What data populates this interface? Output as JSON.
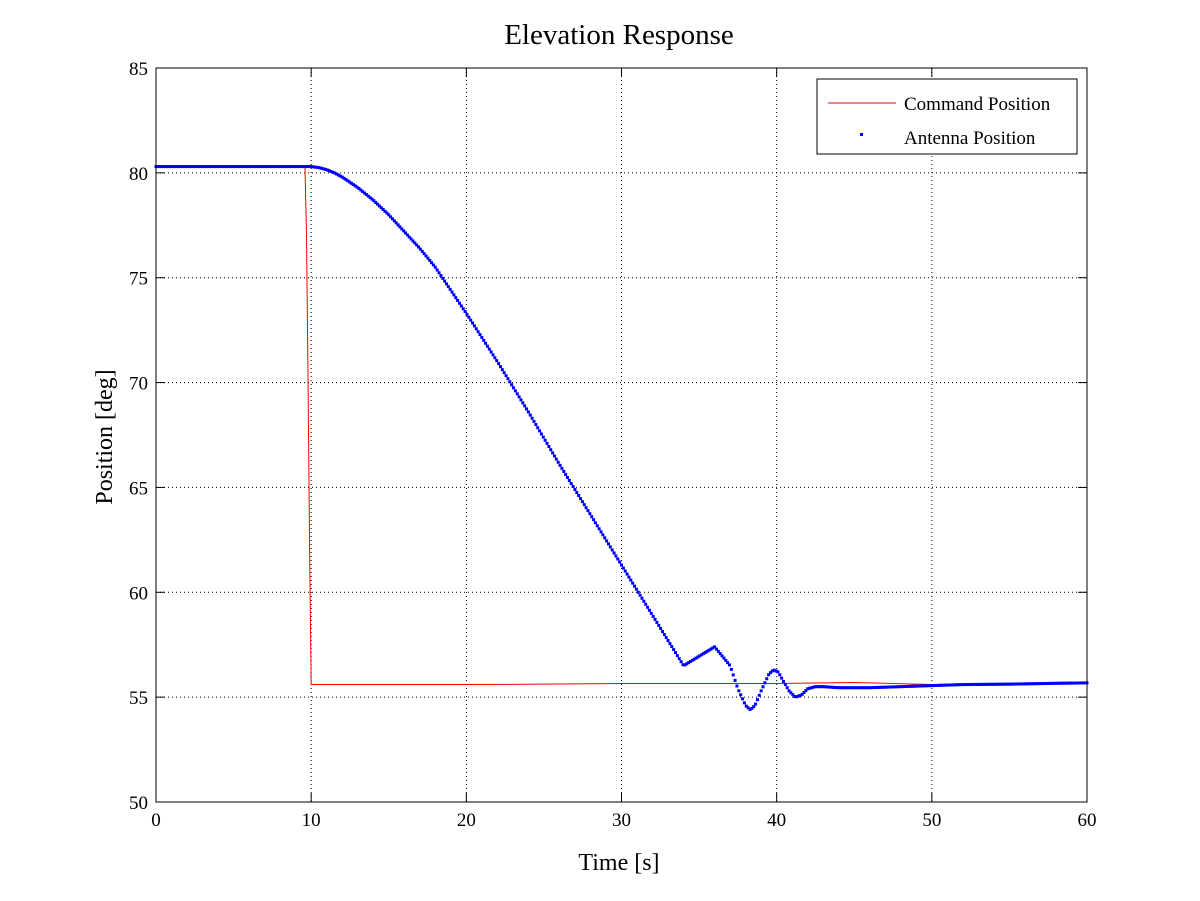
{
  "chart_data": {
    "type": "line",
    "title": "Elevation Response",
    "xlabel": "Time [s]",
    "ylabel": "Position [deg]",
    "xlim": [
      0,
      60
    ],
    "ylim": [
      50,
      85
    ],
    "xticks": [
      0,
      10,
      20,
      30,
      40,
      50,
      60
    ],
    "yticks": [
      50,
      55,
      60,
      65,
      70,
      75,
      80,
      85
    ],
    "grid": true,
    "legend_placement": "top-right",
    "series": [
      {
        "name": "Command Position",
        "style": "line",
        "color": "#ff0000",
        "x": [
          0,
          9.6,
          9.7,
          9.8,
          9.9,
          10.0,
          20,
          27,
          30,
          40,
          45,
          50,
          55,
          60
        ],
        "y": [
          80.3,
          80.3,
          77.0,
          70.0,
          62.0,
          55.6,
          55.6,
          55.63,
          55.65,
          55.65,
          55.7,
          55.6,
          55.65,
          55.7
        ]
      },
      {
        "name": "Antenna Position",
        "style": "markers",
        "color": "#0000ff",
        "x": [
          0,
          10,
          10.5,
          11,
          11.5,
          12,
          12.5,
          13,
          14,
          15,
          16,
          17,
          18,
          20,
          22,
          24,
          26,
          28,
          30,
          32,
          34,
          36,
          37,
          37.5,
          38,
          38.3,
          38.6,
          39,
          39.5,
          39.8,
          40.1,
          40.4,
          40.8,
          41.2,
          41.6,
          42.0,
          42.5,
          43,
          44,
          45,
          46,
          48,
          50,
          52,
          55,
          58,
          60
        ],
        "y": [
          80.3,
          80.3,
          80.25,
          80.15,
          80.0,
          79.8,
          79.55,
          79.3,
          78.7,
          78.0,
          77.2,
          76.4,
          75.5,
          73.3,
          71.0,
          68.6,
          66.1,
          63.7,
          61.3,
          58.9,
          56.5,
          57.4,
          56.5,
          55.4,
          54.6,
          54.4,
          54.6,
          55.3,
          56.1,
          56.3,
          56.2,
          55.8,
          55.3,
          55.0,
          55.1,
          55.4,
          55.5,
          55.5,
          55.45,
          55.45,
          55.45,
          55.5,
          55.55,
          55.6,
          55.62,
          55.66,
          55.68
        ]
      }
    ]
  }
}
